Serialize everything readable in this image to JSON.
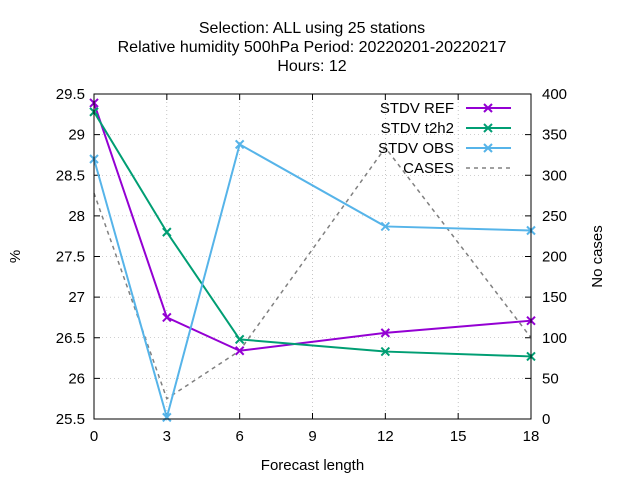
{
  "chart_data": {
    "type": "line",
    "title_lines": [
      "Selection: ALL using    25 stations",
      "Relative humidity 500hPa   Period: 20220201-20220217",
      "Hours:  12"
    ],
    "xlabel": "Forecast length",
    "ylabel": "%",
    "y2label": "No cases",
    "x_ticks": [
      0,
      3,
      6,
      9,
      12,
      15,
      18
    ],
    "xlim": [
      0,
      18
    ],
    "y_ticks": [
      "25.5",
      "26",
      "26.5",
      "27",
      "27.5",
      "28",
      "28.5",
      "29",
      "29.5"
    ],
    "ylim": [
      25.5,
      29.5
    ],
    "y2_ticks": [
      "0",
      "50",
      "100",
      "150",
      "200",
      "250",
      "300",
      "350",
      "400"
    ],
    "y2lim": [
      0,
      400
    ],
    "grid": true,
    "legend_position": "top-right",
    "series": [
      {
        "name": "STDV REF",
        "axis": "y",
        "color": "#9400d3",
        "dash": "solid",
        "marker": "x",
        "x": [
          0,
          3,
          6,
          12,
          18
        ],
        "values": [
          29.39,
          26.75,
          26.34,
          26.56,
          26.71
        ]
      },
      {
        "name": "STDV t2h2",
        "axis": "y",
        "color": "#009e73",
        "dash": "solid",
        "marker": "x",
        "x": [
          0,
          3,
          6,
          12,
          18
        ],
        "values": [
          29.28,
          27.8,
          26.48,
          26.33,
          26.27
        ]
      },
      {
        "name": "STDV OBS",
        "axis": "y",
        "color": "#56b4e9",
        "dash": "solid",
        "marker": "x",
        "x": [
          0,
          3,
          6,
          12,
          18
        ],
        "values": [
          28.7,
          25.52,
          28.88,
          27.87,
          27.82
        ]
      },
      {
        "name": "CASES",
        "axis": "y2",
        "color": "#808080",
        "dash": "dashed",
        "marker": "none",
        "x": [
          0,
          3,
          6,
          12,
          18
        ],
        "values": [
          278,
          25,
          84,
          334,
          100
        ]
      }
    ]
  }
}
